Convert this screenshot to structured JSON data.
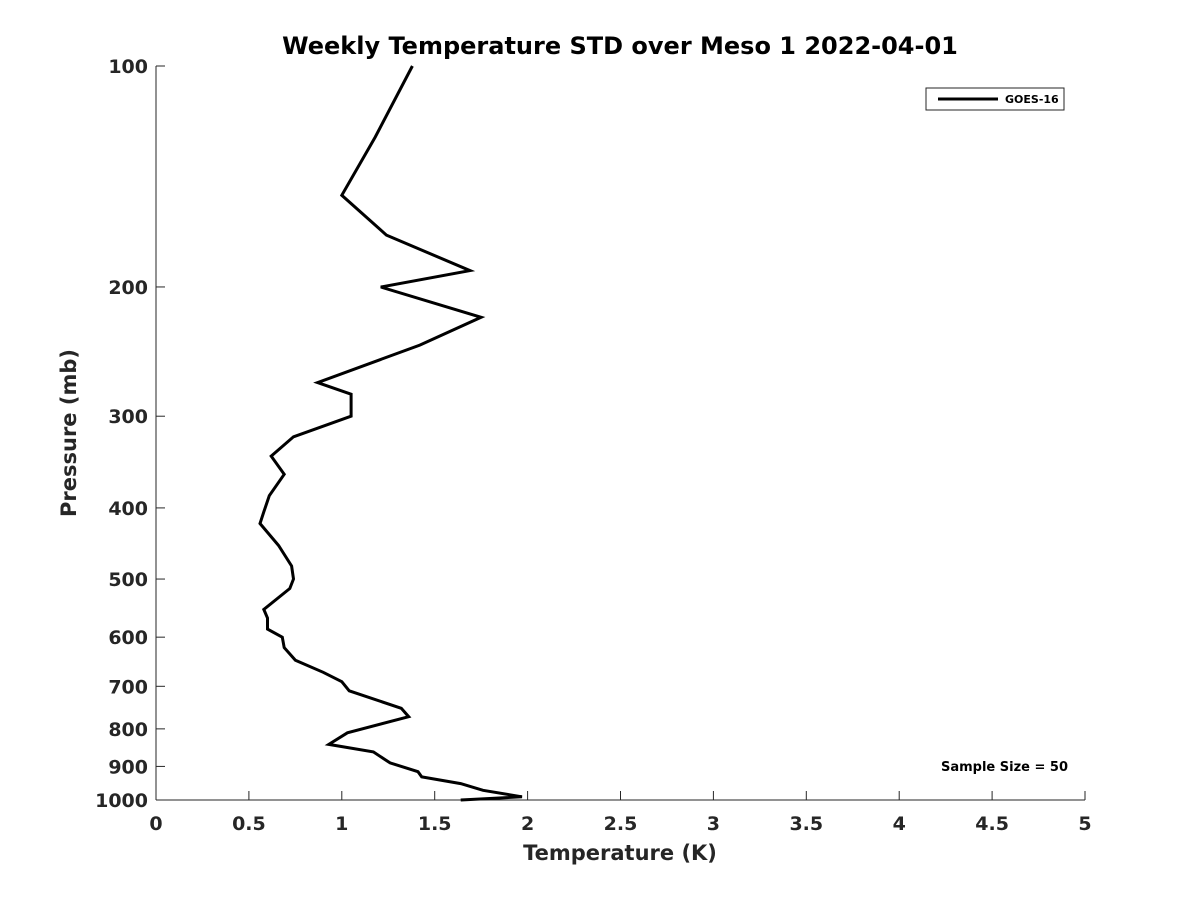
{
  "chart_data": {
    "type": "line",
    "title": "Weekly Temperature STD over Meso 1 2022-04-01",
    "xlabel": "Temperature (K)",
    "ylabel": "Pressure (mb)",
    "xlim": [
      0,
      5
    ],
    "ylim": [
      100,
      1000
    ],
    "y_scale": "log",
    "y_reversed": true,
    "grid": false,
    "x_ticks": [
      0,
      0.5,
      1,
      1.5,
      2,
      2.5,
      3,
      3.5,
      4,
      4.5,
      5
    ],
    "x_tick_labels": [
      "0",
      "0.5",
      "1",
      "1.5",
      "2",
      "2.5",
      "3",
      "3.5",
      "4",
      "4.5",
      "5"
    ],
    "y_ticks": [
      100,
      200,
      300,
      400,
      500,
      600,
      700,
      800,
      900,
      1000
    ],
    "y_tick_labels": [
      "100",
      "200",
      "300",
      "400",
      "500",
      "600",
      "700",
      "800",
      "900",
      "1000"
    ],
    "legend": {
      "placement": "top-right",
      "entries": [
        "GOES-16"
      ]
    },
    "annotation": "Sample Size = 50",
    "series": [
      {
        "name": "GOES-16",
        "color": "#000000",
        "x": [
          1.38,
          1.18,
          1.0,
          1.24,
          1.69,
          1.21,
          1.75,
          1.42,
          0.87,
          1.05,
          1.05,
          0.74,
          0.62,
          0.69,
          0.61,
          0.58,
          0.56,
          0.66,
          0.73,
          0.74,
          0.72,
          0.58,
          0.6,
          0.6,
          0.68,
          0.69,
          0.75,
          0.9,
          1.0,
          1.04,
          1.32,
          1.36,
          1.03,
          0.93,
          1.17,
          1.23,
          1.26,
          1.41,
          1.43,
          1.64,
          1.76,
          1.97,
          1.64
        ],
        "y": [
          100,
          125,
          150,
          170,
          190,
          200,
          220,
          240,
          270,
          280,
          300,
          320,
          340,
          360,
          385,
          405,
          420,
          450,
          480,
          500,
          515,
          550,
          565,
          585,
          600,
          620,
          645,
          670,
          690,
          710,
          750,
          770,
          810,
          840,
          860,
          880,
          890,
          915,
          930,
          950,
          970,
          990,
          1000
        ]
      }
    ]
  }
}
